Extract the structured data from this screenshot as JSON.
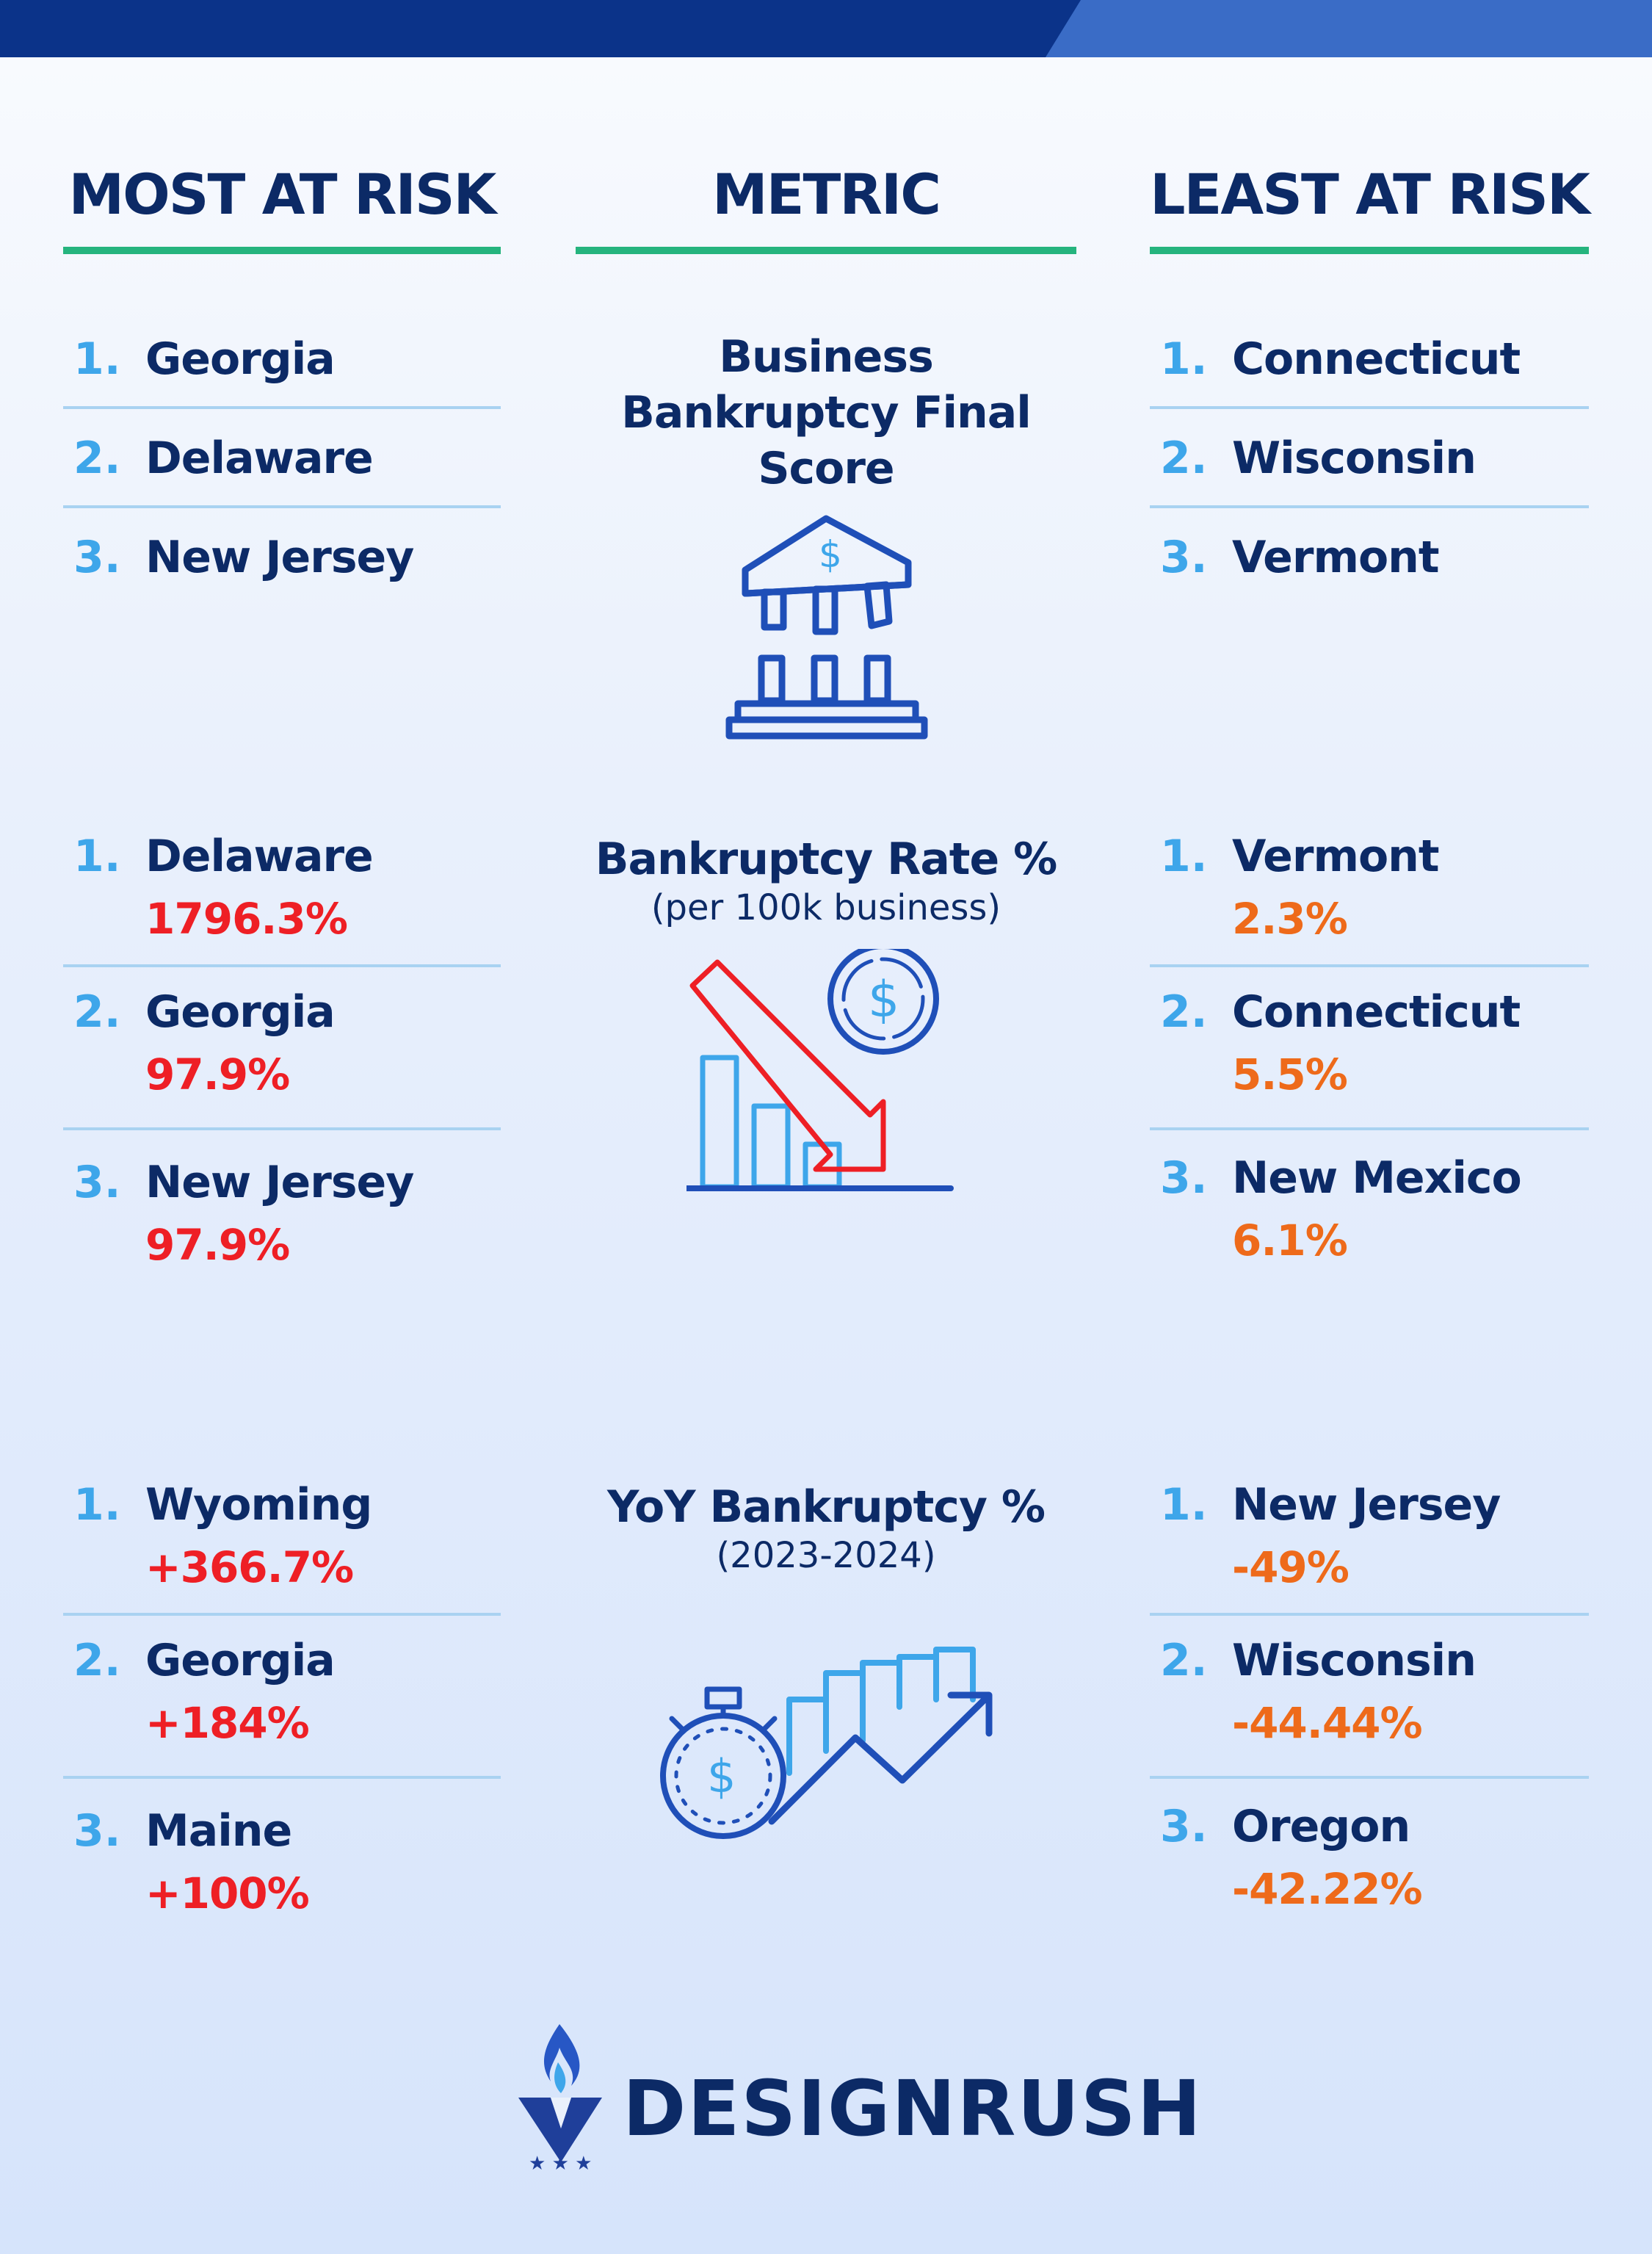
{
  "headers": {
    "most": "MOST AT RISK",
    "metric": "METRIC",
    "least": "LEAST AT RISK"
  },
  "sections": [
    {
      "metric_title": "Business Bankruptcy Final Score",
      "metric_subtitle": "",
      "icon": "bank-building-icon",
      "most": [
        {
          "rank": "1.",
          "state": "Georgia"
        },
        {
          "rank": "2.",
          "state": "Delaware"
        },
        {
          "rank": "3.",
          "state": "New Jersey"
        }
      ],
      "least": [
        {
          "rank": "1.",
          "state": "Connecticut"
        },
        {
          "rank": "2.",
          "state": "Wisconsin"
        },
        {
          "rank": "3.",
          "state": "Vermont"
        }
      ]
    },
    {
      "metric_title": "Bankruptcy Rate %",
      "metric_subtitle": "(per 100k business)",
      "icon": "declining-chart-icon",
      "most": [
        {
          "rank": "1.",
          "state": "Delaware",
          "value": "1796.3%"
        },
        {
          "rank": "2.",
          "state": "Georgia",
          "value": "97.9%"
        },
        {
          "rank": "3.",
          "state": "New Jersey",
          "value": "97.9%"
        }
      ],
      "least": [
        {
          "rank": "1.",
          "state": "Vermont",
          "value": "2.3%"
        },
        {
          "rank": "2.",
          "state": "Connecticut",
          "value": "5.5%"
        },
        {
          "rank": "3.",
          "state": "New Mexico",
          "value": "6.1%"
        }
      ]
    },
    {
      "metric_title": "YoY Bankruptcy %",
      "metric_subtitle": "(2023-2024)",
      "icon": "stopwatch-growth-icon",
      "most": [
        {
          "rank": "1.",
          "state": "Wyoming",
          "value": "+366.7%"
        },
        {
          "rank": "2.",
          "state": "Georgia",
          "value": "+184%"
        },
        {
          "rank": "3.",
          "state": "Maine",
          "value": "+100%"
        }
      ],
      "least": [
        {
          "rank": "1.",
          "state": "New Jersey",
          "value": "-49%"
        },
        {
          "rank": "2.",
          "state": "Wisconsin",
          "value": "-44.44%"
        },
        {
          "rank": "3.",
          "state": "Oregon",
          "value": "-42.22%"
        }
      ]
    }
  ],
  "logo": {
    "name": "DESIGNRUSH",
    "icon": "designrush-flame-logo-icon"
  },
  "colors": {
    "navy": "#0c2a66",
    "accent_green": "#25b47e",
    "rank_blue": "#3ea6ea",
    "most_value_red": "#ee1f25",
    "least_value_orange": "#ee6a1a",
    "separator": "#a9d2f1",
    "topbar_dark": "#0b3389",
    "topbar_light": "#3a6cc6"
  }
}
